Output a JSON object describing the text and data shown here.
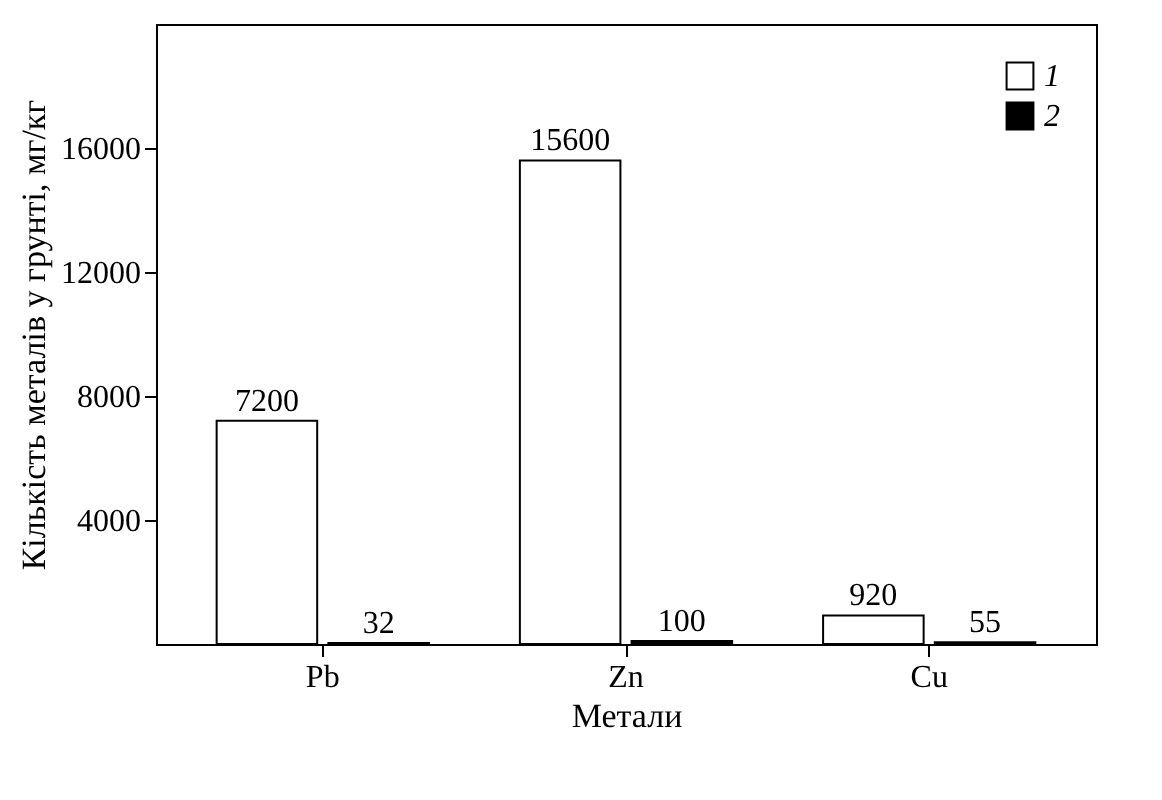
{
  "chart_data": {
    "type": "bar",
    "xlabel": "Метали",
    "ylabel": "Кількість металів у грунті, мг/кг",
    "categories": [
      "Pb",
      "Zn",
      "Cu"
    ],
    "series": [
      {
        "name": "1",
        "color": "#ffffff",
        "values": [
          7200,
          15600,
          920
        ]
      },
      {
        "name": "2",
        "color": "#000000",
        "values": [
          32,
          100,
          55
        ]
      }
    ],
    "ylim": [
      0,
      20000
    ],
    "yticks": [
      4000,
      8000,
      12000,
      16000
    ],
    "grid": false,
    "legend": "top right",
    "data_labels": true
  }
}
